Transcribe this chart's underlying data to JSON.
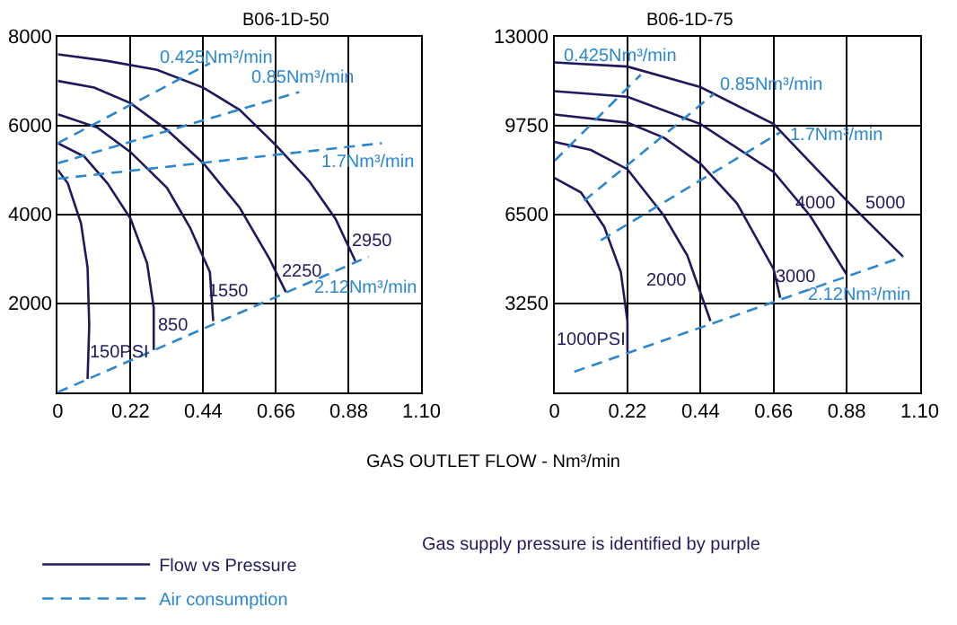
{
  "chart_data": [
    {
      "type": "line",
      "title": "B06-1D-50",
      "xlabel": "GAS OUTLET FLOW - Nm³/min",
      "legend": "bottom left",
      "grid": true,
      "xlim": [
        0,
        1.1
      ],
      "xticks": [
        0,
        0.22,
        0.44,
        0.66,
        0.88,
        {
          "value": 1.1,
          "label": "1.10"
        }
      ],
      "ylim": [
        0,
        8000
      ],
      "yticks": [
        2000,
        4000,
        6000,
        8000
      ],
      "series": [
        {
          "name": "Flow vs Pressure",
          "color": "#1f1a5c",
          "line_style": "solid",
          "x": [
            0,
            0.03,
            0.07,
            0.09,
            0.095,
            0.09
          ],
          "values": [
            5000,
            4700,
            3800,
            2800,
            1500,
            300
          ]
        },
        {
          "color": "#1f1a5c",
          "line_style": "solid",
          "x": [
            0,
            0.08,
            0.15,
            0.22,
            0.27,
            0.29,
            0.29
          ],
          "values": [
            5600,
            5300,
            4700,
            3900,
            2900,
            1900,
            950
          ]
        },
        {
          "color": "#1f1a5c",
          "line_style": "solid",
          "x": [
            0,
            0.12,
            0.22,
            0.33,
            0.4,
            0.46,
            0.47
          ],
          "values": [
            6250,
            5950,
            5400,
            4600,
            3700,
            2700,
            1600
          ]
        },
        {
          "color": "#1f1a5c",
          "line_style": "solid",
          "x": [
            0,
            0.11,
            0.22,
            0.33,
            0.44,
            0.55,
            0.64,
            0.69
          ],
          "values": [
            7000,
            6850,
            6500,
            5900,
            5150,
            4150,
            3000,
            2250
          ]
        },
        {
          "color": "#1f1a5c",
          "line_style": "solid",
          "x": [
            0,
            0.15,
            0.3,
            0.44,
            0.55,
            0.66,
            0.76,
            0.84,
            0.9
          ],
          "values": [
            7600,
            7450,
            7250,
            6850,
            6350,
            5550,
            4750,
            3900,
            2950
          ]
        },
        {
          "name": "Air consumption",
          "color": "#2b87cf",
          "line_style": "dashed",
          "x": [
            0,
            0.46
          ],
          "values": [
            5600,
            7400
          ]
        },
        {
          "color": "#2b87cf",
          "line_style": "dashed",
          "x": [
            0,
            0.73
          ],
          "values": [
            5150,
            6750
          ]
        },
        {
          "color": "#2b87cf",
          "line_style": "dashed",
          "x": [
            0,
            0.98
          ],
          "values": [
            4800,
            5600
          ]
        },
        {
          "color": "#2b87cf",
          "line_style": "dashed",
          "x": [
            0,
            0.94
          ],
          "values": [
            0,
            3050
          ]
        }
      ],
      "annotations": [
        "0.425Nm³/min",
        "0.85Nm³/min",
        "1.7Nm³/min",
        "2.12Nm³/min",
        "2950",
        "2250",
        "1550",
        "850",
        "150PSI",
        "Gas supply pressure is identified by purple"
      ]
    },
    {
      "type": "line",
      "title": "B06-1D-75",
      "grid": true,
      "xlim": [
        0,
        1.1
      ],
      "xticks": [
        0,
        0.22,
        0.44,
        0.66,
        0.88,
        {
          "value": 1.1,
          "label": "1.10"
        }
      ],
      "ylim": [
        0,
        13000
      ],
      "yticks": [
        3250,
        6500,
        9750,
        13000
      ],
      "series": [
        {
          "color": "#1f1a5c",
          "line_style": "solid",
          "x": [
            0,
            0.08,
            0.15,
            0.2,
            0.22,
            0.22
          ],
          "values": [
            7830,
            7300,
            6050,
            4400,
            2600,
            1500
          ]
        },
        {
          "color": "#1f1a5c",
          "line_style": "solid",
          "x": [
            0,
            0.11,
            0.22,
            0.33,
            0.4,
            0.47
          ],
          "values": [
            9150,
            8850,
            8150,
            6450,
            5000,
            2600
          ]
        },
        {
          "color": "#1f1a5c",
          "line_style": "solid",
          "x": [
            0,
            0.22,
            0.33,
            0.44,
            0.55,
            0.66,
            0.68
          ],
          "values": [
            10150,
            9850,
            9300,
            8350,
            6900,
            4500,
            3450
          ]
        },
        {
          "color": "#1f1a5c",
          "line_style": "solid",
          "x": [
            0,
            0.22,
            0.44,
            0.66,
            0.77,
            0.88
          ],
          "values": [
            11000,
            10800,
            9800,
            8050,
            6450,
            4300
          ]
        },
        {
          "color": "#1f1a5c",
          "line_style": "solid",
          "x": [
            0,
            0.22,
            0.44,
            0.66,
            0.88,
            1.05
          ],
          "values": [
            12050,
            11900,
            11150,
            9800,
            7000,
            4950
          ]
        },
        {
          "color": "#2b87cf",
          "line_style": "dashed",
          "x": [
            0,
            0.26
          ],
          "values": [
            8450,
            11600
          ]
        },
        {
          "color": "#2b87cf",
          "line_style": "dashed",
          "x": [
            0.09,
            0.48
          ],
          "values": [
            7000,
            10900
          ]
        },
        {
          "color": "#2b87cf",
          "line_style": "dashed",
          "x": [
            0.14,
            0.68
          ],
          "values": [
            5550,
            9500
          ]
        },
        {
          "color": "#2b87cf",
          "line_style": "dashed",
          "x": [
            0.06,
            1.05
          ],
          "values": [
            750,
            4950
          ]
        }
      ],
      "annotations": [
        "0.425Nm³/min",
        "0.85Nm³/min",
        "1.7Nm³/min",
        "2.12Nm³/min",
        "4000",
        "5000",
        "3000",
        "2000",
        "1000PSI"
      ]
    }
  ]
}
